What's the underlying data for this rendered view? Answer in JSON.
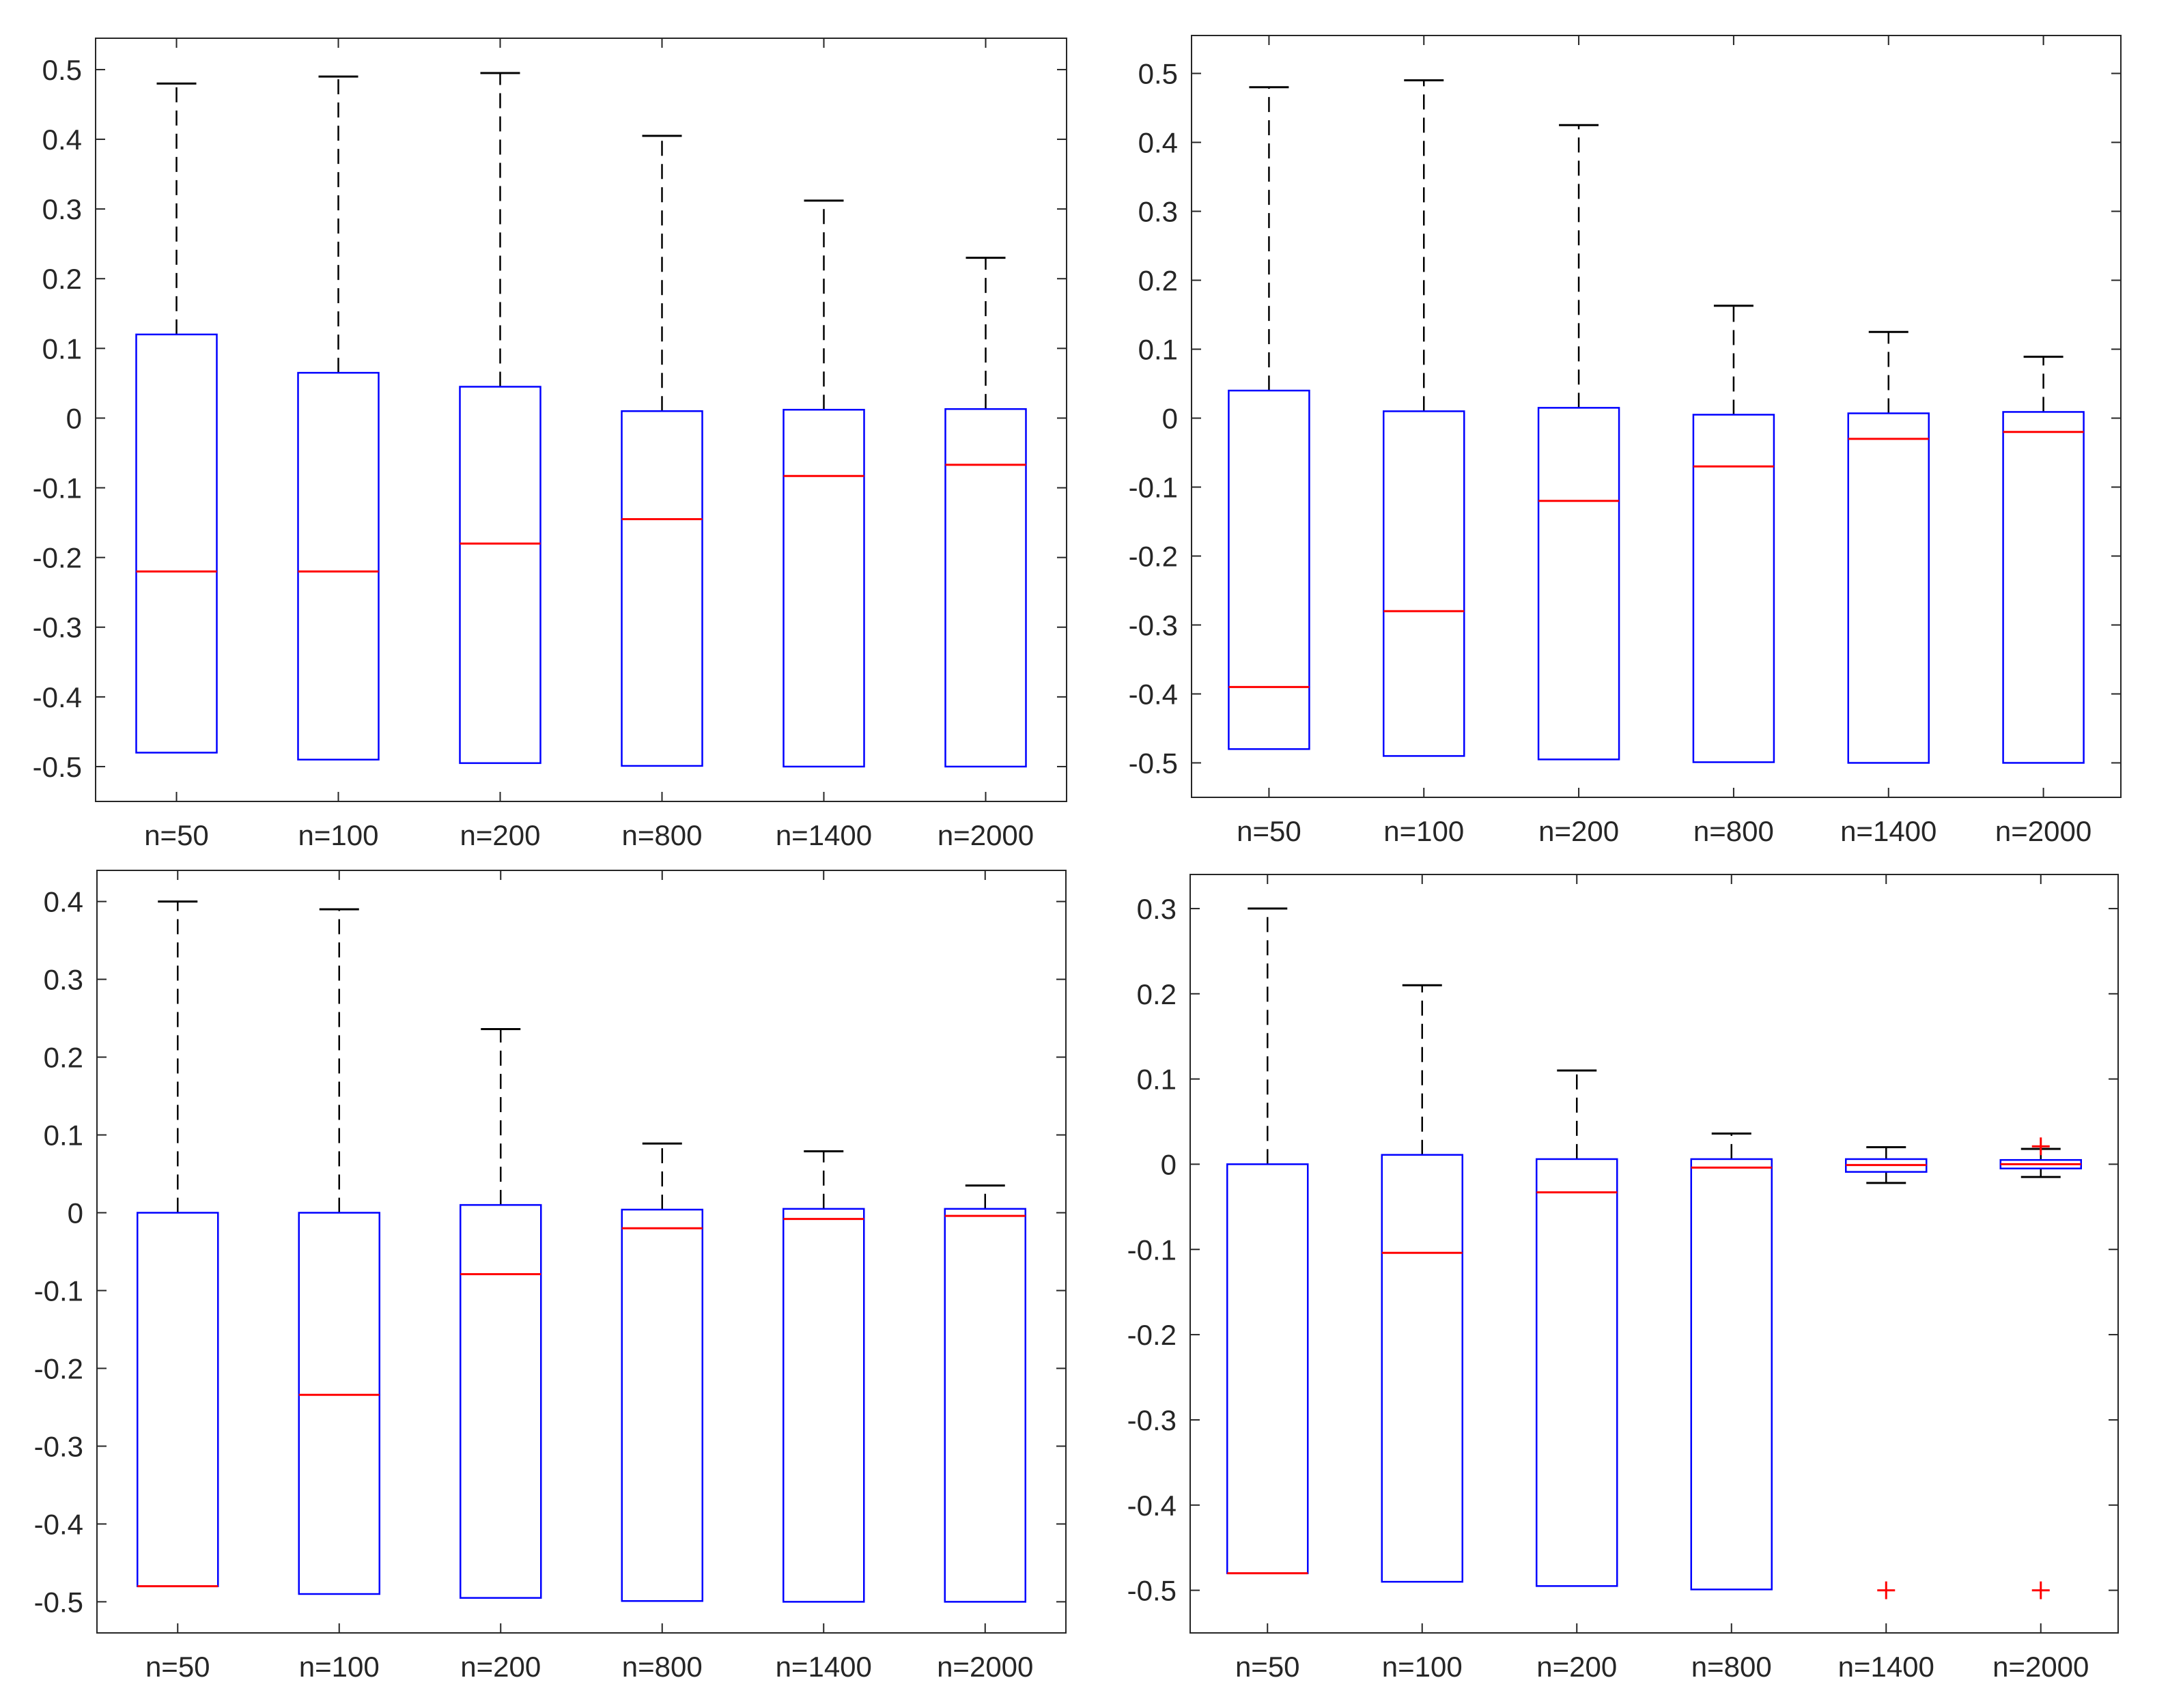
{
  "colors": {
    "box": "#0000ff",
    "median": "#ff0000",
    "whisker": "#000000",
    "outlier": "#ff0000",
    "axis": "#262626",
    "background": "#ffffff"
  },
  "chart_data": [
    {
      "type": "boxplot",
      "position": "top-left",
      "categories": [
        "n=50",
        "n=100",
        "n=200",
        "n=800",
        "n=1400",
        "n=2000"
      ],
      "ylim": [
        -0.55,
        0.545
      ],
      "yticks": [
        0.5,
        0.4,
        0.3,
        0.2,
        0.1,
        0,
        -0.1,
        -0.2,
        -0.3,
        -0.4,
        -0.5
      ],
      "ytick_labels": [
        "0.5",
        "0.4",
        "0.3",
        "0.2",
        "0.1",
        "0",
        "-0.1",
        "-0.2",
        "-0.3",
        "-0.4",
        "-0.5"
      ],
      "boxes": [
        {
          "whisker_low": -0.48,
          "q1": -0.48,
          "median": -0.22,
          "q3": 0.12,
          "whisker_high": 0.48,
          "outliers": []
        },
        {
          "whisker_low": -0.49,
          "q1": -0.49,
          "median": -0.22,
          "q3": 0.065,
          "whisker_high": 0.49,
          "outliers": []
        },
        {
          "whisker_low": -0.495,
          "q1": -0.495,
          "median": -0.18,
          "q3": 0.045,
          "whisker_high": 0.495,
          "outliers": []
        },
        {
          "whisker_low": -0.499,
          "q1": -0.499,
          "median": -0.145,
          "q3": 0.01,
          "whisker_high": 0.405,
          "outliers": []
        },
        {
          "whisker_low": -0.5,
          "q1": -0.5,
          "median": -0.083,
          "q3": 0.012,
          "whisker_high": 0.312,
          "outliers": []
        },
        {
          "whisker_low": -0.5,
          "q1": -0.5,
          "median": -0.067,
          "q3": 0.013,
          "whisker_high": 0.23,
          "outliers": []
        }
      ]
    },
    {
      "type": "boxplot",
      "position": "top-right",
      "categories": [
        "n=50",
        "n=100",
        "n=200",
        "n=800",
        "n=1400",
        "n=2000"
      ],
      "ylim": [
        -0.55,
        0.555
      ],
      "yticks": [
        0.5,
        0.4,
        0.3,
        0.2,
        0.1,
        0,
        -0.1,
        -0.2,
        -0.3,
        -0.4,
        -0.5
      ],
      "ytick_labels": [
        "0.5",
        "0.4",
        "0.3",
        "0.2",
        "0.1",
        "0",
        "-0.1",
        "-0.2",
        "-0.3",
        "-0.4",
        "-0.5"
      ],
      "boxes": [
        {
          "whisker_low": -0.48,
          "q1": -0.48,
          "median": -0.39,
          "q3": 0.04,
          "whisker_high": 0.48,
          "outliers": []
        },
        {
          "whisker_low": -0.49,
          "q1": -0.49,
          "median": -0.28,
          "q3": 0.01,
          "whisker_high": 0.49,
          "outliers": []
        },
        {
          "whisker_low": -0.495,
          "q1": -0.495,
          "median": -0.12,
          "q3": 0.015,
          "whisker_high": 0.425,
          "outliers": []
        },
        {
          "whisker_low": -0.499,
          "q1": -0.499,
          "median": -0.07,
          "q3": 0.005,
          "whisker_high": 0.163,
          "outliers": []
        },
        {
          "whisker_low": -0.5,
          "q1": -0.5,
          "median": -0.03,
          "q3": 0.007,
          "whisker_high": 0.125,
          "outliers": []
        },
        {
          "whisker_low": -0.5,
          "q1": -0.5,
          "median": -0.02,
          "q3": 0.009,
          "whisker_high": 0.089,
          "outliers": []
        }
      ]
    },
    {
      "type": "boxplot",
      "position": "bottom-left",
      "categories": [
        "n=50",
        "n=100",
        "n=200",
        "n=800",
        "n=1400",
        "n=2000"
      ],
      "ylim": [
        -0.54,
        0.44
      ],
      "yticks": [
        0.4,
        0.3,
        0.2,
        0.1,
        0,
        -0.1,
        -0.2,
        -0.3,
        -0.4,
        -0.5
      ],
      "ytick_labels": [
        "0.4",
        "0.3",
        "0.2",
        "0.1",
        "0",
        "-0.1",
        "-0.2",
        "-0.3",
        "-0.4",
        "-0.5"
      ],
      "boxes": [
        {
          "whisker_low": -0.48,
          "q1": -0.48,
          "median": -0.48,
          "q3": 0.0,
          "whisker_high": 0.4,
          "outliers": []
        },
        {
          "whisker_low": -0.49,
          "q1": -0.49,
          "median": -0.234,
          "q3": 0.0,
          "whisker_high": 0.39,
          "outliers": []
        },
        {
          "whisker_low": -0.495,
          "q1": -0.495,
          "median": -0.079,
          "q3": 0.01,
          "whisker_high": 0.236,
          "outliers": []
        },
        {
          "whisker_low": -0.499,
          "q1": -0.499,
          "median": -0.02,
          "q3": 0.004,
          "whisker_high": 0.089,
          "outliers": []
        },
        {
          "whisker_low": -0.5,
          "q1": -0.5,
          "median": -0.008,
          "q3": 0.005,
          "whisker_high": 0.079,
          "outliers": []
        },
        {
          "whisker_low": -0.5,
          "q1": -0.5,
          "median": -0.004,
          "q3": 0.005,
          "whisker_high": 0.035,
          "outliers": []
        }
      ]
    },
    {
      "type": "boxplot",
      "position": "bottom-right",
      "categories": [
        "n=50",
        "n=100",
        "n=200",
        "n=800",
        "n=1400",
        "n=2000"
      ],
      "ylim": [
        -0.55,
        0.34
      ],
      "yticks": [
        0.3,
        0.2,
        0.1,
        0,
        -0.1,
        -0.2,
        -0.3,
        -0.4,
        -0.5
      ],
      "ytick_labels": [
        "0.3",
        "0.2",
        "0.1",
        "0",
        "-0.1",
        "-0.2",
        "-0.3",
        "-0.4",
        "-0.5"
      ],
      "boxes": [
        {
          "whisker_low": -0.48,
          "q1": -0.48,
          "median": -0.48,
          "q3": 0.0,
          "whisker_high": 0.3,
          "outliers": []
        },
        {
          "whisker_low": -0.49,
          "q1": -0.49,
          "median": -0.104,
          "q3": 0.011,
          "whisker_high": 0.21,
          "outliers": []
        },
        {
          "whisker_low": -0.495,
          "q1": -0.495,
          "median": -0.033,
          "q3": 0.006,
          "whisker_high": 0.11,
          "outliers": []
        },
        {
          "whisker_low": -0.499,
          "q1": -0.499,
          "median": -0.004,
          "q3": 0.006,
          "whisker_high": 0.036,
          "outliers": []
        },
        {
          "whisker_low": -0.022,
          "q1": -0.009,
          "median": -0.001,
          "q3": 0.006,
          "whisker_high": 0.02,
          "outliers": [
            -0.5
          ]
        },
        {
          "whisker_low": -0.015,
          "q1": -0.005,
          "median": 0.0,
          "q3": 0.005,
          "whisker_high": 0.018,
          "outliers": [
            0.021,
            -0.5
          ]
        }
      ]
    }
  ]
}
